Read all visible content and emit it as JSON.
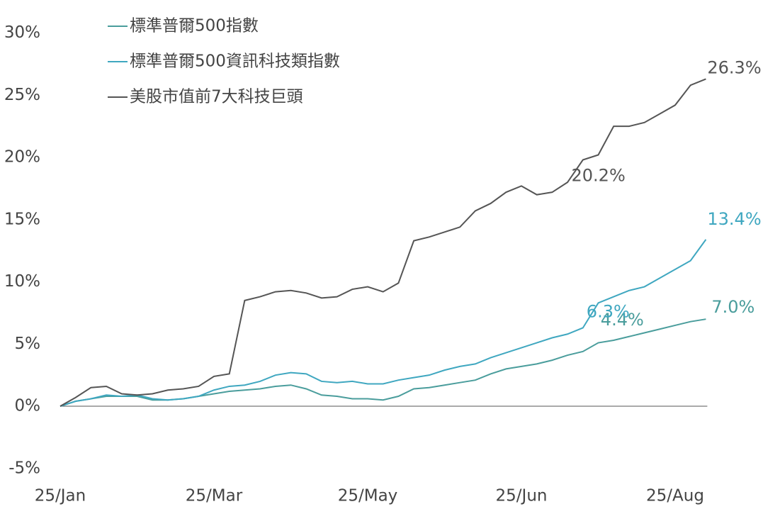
{
  "chart_data": {
    "type": "line",
    "categories": [
      "25/Jan",
      null,
      null,
      null,
      null,
      null,
      null,
      null,
      null,
      null,
      "25/Mar",
      null,
      null,
      null,
      null,
      null,
      null,
      null,
      null,
      null,
      "25/May",
      null,
      null,
      null,
      null,
      null,
      null,
      null,
      null,
      null,
      "25/Jun",
      null,
      null,
      null,
      null,
      null,
      null,
      null,
      null,
      null,
      "25/Aug",
      null,
      null
    ],
    "series": [
      {
        "name": "標準普爾500指數",
        "color": "#4a9d9c",
        "values": [
          0,
          0.4,
          0.6,
          0.8,
          0.8,
          0.8,
          0.5,
          0.5,
          0.6,
          0.8,
          1.0,
          1.2,
          1.3,
          1.4,
          1.6,
          1.7,
          1.4,
          0.9,
          0.8,
          0.6,
          0.6,
          0.5,
          0.8,
          1.4,
          1.5,
          1.7,
          1.9,
          2.1,
          2.6,
          3.0,
          3.2,
          3.4,
          3.7,
          4.1,
          4.4,
          5.1,
          5.3,
          5.6,
          5.9,
          6.2,
          6.5,
          6.8,
          7.0
        ],
        "value_labels": [
          null,
          null,
          null,
          null,
          null,
          null,
          null,
          null,
          null,
          null,
          null,
          null,
          null,
          null,
          null,
          null,
          null,
          null,
          null,
          null,
          null,
          null,
          null,
          null,
          null,
          null,
          null,
          null,
          null,
          null,
          null,
          null,
          null,
          null,
          "4.4%",
          null,
          null,
          null,
          null,
          null,
          null,
          null,
          "7.0%"
        ]
      },
      {
        "name": "標準普爾500資訊科技類指數",
        "color": "#3fa7c0",
        "values": [
          0,
          0.4,
          0.6,
          0.9,
          0.8,
          0.9,
          0.6,
          0.5,
          0.6,
          0.8,
          1.3,
          1.6,
          1.7,
          2.0,
          2.5,
          2.7,
          2.6,
          2.0,
          1.9,
          2.0,
          1.8,
          1.8,
          2.1,
          2.3,
          2.5,
          2.9,
          3.2,
          3.4,
          3.9,
          4.3,
          4.7,
          5.1,
          5.5,
          5.8,
          6.3,
          8.3,
          8.8,
          9.3,
          9.6,
          10.3,
          11.0,
          11.7,
          13.4
        ],
        "value_labels": [
          null,
          null,
          null,
          null,
          null,
          null,
          null,
          null,
          null,
          null,
          null,
          null,
          null,
          null,
          null,
          null,
          null,
          null,
          null,
          null,
          null,
          null,
          null,
          null,
          null,
          null,
          null,
          null,
          null,
          null,
          null,
          null,
          null,
          null,
          "6.3%",
          null,
          null,
          null,
          null,
          null,
          null,
          null,
          "13.4%"
        ]
      },
      {
        "name": "美股市值前7大科技巨頭",
        "color": "#555555",
        "values": [
          0,
          0.7,
          1.5,
          1.6,
          1.0,
          0.9,
          1.0,
          1.3,
          1.4,
          1.6,
          2.4,
          2.6,
          8.5,
          8.8,
          9.2,
          9.3,
          9.1,
          8.7,
          8.8,
          9.4,
          9.6,
          9.2,
          9.9,
          13.3,
          13.6,
          14.0,
          14.4,
          15.7,
          16.3,
          17.2,
          17.7,
          17.0,
          17.2,
          18.0,
          19.8,
          20.2,
          22.5,
          22.5,
          22.8,
          23.5,
          24.2,
          25.8,
          26.3
        ],
        "value_labels": [
          null,
          null,
          null,
          null,
          null,
          null,
          null,
          null,
          null,
          null,
          null,
          null,
          null,
          null,
          null,
          null,
          null,
          null,
          null,
          null,
          null,
          null,
          null,
          null,
          null,
          null,
          null,
          null,
          null,
          null,
          null,
          null,
          null,
          null,
          null,
          "20.2%",
          null,
          null,
          null,
          null,
          null,
          null,
          "26.3%"
        ]
      }
    ],
    "ylim": [
      -5,
      30
    ],
    "yticks": [
      {
        "value": -5,
        "label": "-5%"
      },
      {
        "value": 0,
        "label": "0%"
      },
      {
        "value": 5,
        "label": "5%"
      },
      {
        "value": 10,
        "label": "10%"
      },
      {
        "value": 15,
        "label": "15%"
      },
      {
        "value": 20,
        "label": "20%"
      },
      {
        "value": 25,
        "label": "25%"
      },
      {
        "value": 30,
        "label": "30%"
      }
    ],
    "grid": false,
    "legend": "top-left"
  }
}
